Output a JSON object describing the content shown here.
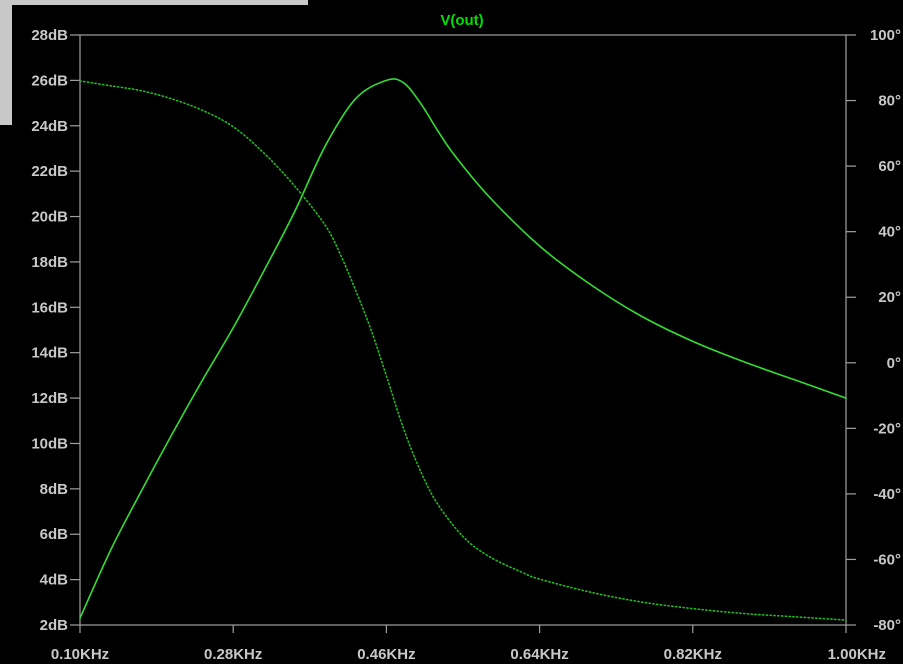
{
  "chart_data": {
    "type": "line",
    "title": "V(out)",
    "xlabel": "",
    "ylabel": "",
    "grid": false,
    "x_axis": {
      "min": 0.1,
      "max": 1.0,
      "ticks": [
        0.1,
        0.28,
        0.46,
        0.64,
        0.82,
        1.0
      ],
      "tick_labels": [
        "0.10KHz",
        "0.28KHz",
        "0.46KHz",
        "0.64KHz",
        "0.82KHz",
        "1.00KHz"
      ]
    },
    "y_left": {
      "min": 2,
      "max": 28,
      "ticks": [
        2,
        4,
        6,
        8,
        10,
        12,
        14,
        16,
        18,
        20,
        22,
        24,
        26,
        28
      ],
      "tick_labels": [
        "2dB",
        "4dB",
        "6dB",
        "8dB",
        "10dB",
        "12dB",
        "14dB",
        "16dB",
        "18dB",
        "20dB",
        "22dB",
        "24dB",
        "26dB",
        "28dB"
      ]
    },
    "y_right": {
      "min": -80,
      "max": 100,
      "ticks": [
        -80,
        -60,
        -40,
        -20,
        0,
        20,
        40,
        60,
        80,
        100
      ],
      "tick_labels": [
        "-80°",
        "-60°",
        "-40°",
        "-20°",
        "0°",
        "20°",
        "40°",
        "60°",
        "80°",
        "100°"
      ]
    },
    "series": [
      {
        "axis": "left",
        "style": "solid",
        "color": "#33dd33",
        "x": [
          0.1,
          0.136,
          0.172,
          0.208,
          0.244,
          0.28,
          0.316,
          0.352,
          0.388,
          0.424,
          0.46,
          0.48,
          0.5,
          0.52,
          0.54,
          0.58,
          0.64,
          0.7,
          0.76,
          0.82,
          0.88,
          0.94,
          1.0
        ],
        "values": [
          2.3,
          5.3,
          7.9,
          10.4,
          12.8,
          15.1,
          17.6,
          20.2,
          23.1,
          25.2,
          26.0,
          25.9,
          25.0,
          23.8,
          22.7,
          20.9,
          18.7,
          17.0,
          15.6,
          14.5,
          13.6,
          12.8,
          12.0
        ]
      },
      {
        "axis": "right",
        "style": "dotted",
        "color": "#22bb22",
        "x": [
          0.1,
          0.136,
          0.172,
          0.208,
          0.244,
          0.28,
          0.316,
          0.352,
          0.388,
          0.406,
          0.424,
          0.442,
          0.46,
          0.48,
          0.5,
          0.52,
          0.55,
          0.58,
          0.62,
          0.64,
          0.7,
          0.76,
          0.82,
          0.88,
          0.94,
          1.0
        ],
        "values": [
          86,
          84.5,
          83,
          80.5,
          77,
          72,
          64,
          54,
          42,
          33,
          22,
          10,
          -4,
          -20,
          -33,
          -43,
          -53,
          -59,
          -64,
          -66,
          -70,
          -73,
          -75,
          -76.5,
          -77.5,
          -78.5
        ]
      }
    ]
  }
}
